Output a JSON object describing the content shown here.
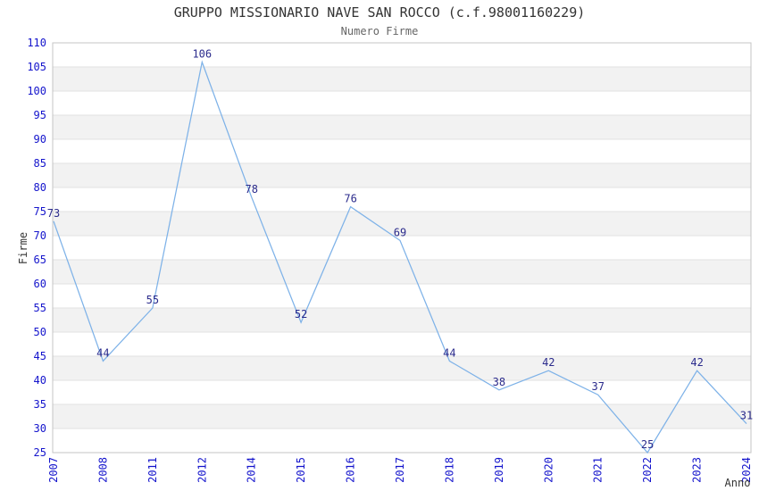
{
  "chart_data": {
    "type": "line",
    "title": "GRUPPO MISSIONARIO NAVE SAN ROCCO (c.f.98001160229)",
    "subtitle": "Numero Firme",
    "xlabel": "Anno",
    "ylabel": "Firme",
    "categories": [
      "2007",
      "2008",
      "2011",
      "2012",
      "2014",
      "2015",
      "2016",
      "2017",
      "2018",
      "2019",
      "2020",
      "2021",
      "2022",
      "2023",
      "2024"
    ],
    "values": [
      73,
      44,
      55,
      106,
      78,
      52,
      76,
      69,
      44,
      38,
      42,
      37,
      25,
      42,
      31
    ],
    "ylim": [
      25,
      110
    ],
    "y_tick_step": 5,
    "legend": "none",
    "grid": "horizontal-bands-alternating",
    "data_labels_shown": true,
    "colors": {
      "line": "#7EB2E8",
      "data_label": "#2B2B8C",
      "tick_label": "#1414CC",
      "title": "#333333",
      "subtitle": "#666666",
      "axis_title": "#333333",
      "band_fill": "#F2F2F2",
      "gridline": "#E2E2E2",
      "plot_border": "#C4C4C4",
      "background": "#FFFFFF"
    }
  }
}
